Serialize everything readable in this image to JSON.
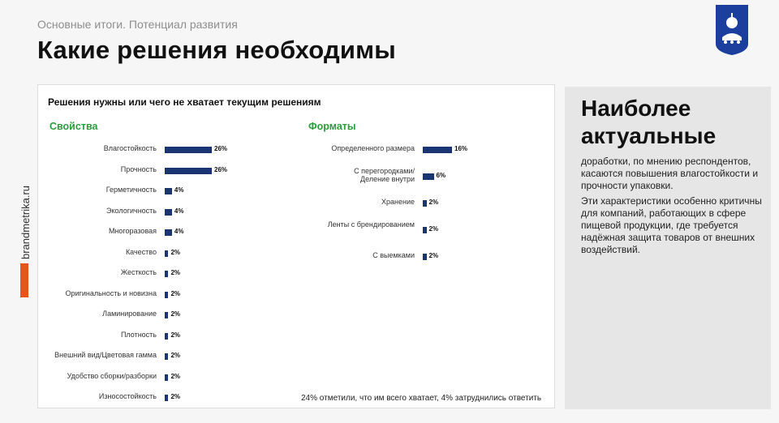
{
  "header": {
    "supertitle": "Основные итоги. Потенциал развития",
    "title": "Какие решения необходимы"
  },
  "brand": {
    "side_text": "brandmetrika.ru"
  },
  "chart_data": [
    {
      "type": "bar",
      "orientation": "horizontal",
      "title": "Свойства",
      "categories": [
        "Влагостойкость",
        "Прочность",
        "Герметичность",
        "Экологичность",
        "Многоразовая",
        "Качество",
        "Жесткость",
        "Оригинальность и новизна",
        "Ламинирование",
        "Плотность",
        "Внешний вид/Цветовая гамма",
        "Удобство сборки/разборки",
        "Износостойкость"
      ],
      "values": [
        26,
        26,
        4,
        4,
        4,
        2,
        2,
        2,
        2,
        2,
        2,
        2,
        2
      ],
      "value_labels": [
        "26%",
        "26%",
        "4%",
        "4%",
        "4%",
        "2%",
        "2%",
        "2%",
        "2%",
        "2%",
        "2%",
        "2%",
        "2%"
      ],
      "unit": "%",
      "xlim": [
        0,
        26
      ],
      "grid": false,
      "color": "#1b3472"
    },
    {
      "type": "bar",
      "orientation": "horizontal",
      "title": "Форматы",
      "categories": [
        "Определенного размера",
        "С перегородками/Деление внутри",
        "Хранение",
        "Ленты  с брендированием",
        "С выемками"
      ],
      "values": [
        16,
        6,
        2,
        2,
        2
      ],
      "value_labels": [
        "16%",
        "6%",
        "2%",
        "2%",
        "2%"
      ],
      "unit": "%",
      "xlim": [
        0,
        16
      ],
      "grid": false,
      "color": "#1b3472"
    }
  ],
  "panel": {
    "title": "Решения нужны или чего не хватает текущим решениям",
    "footnote": "24% отметили, что им всего хватает, 4% затруднились ответить"
  },
  "summary": {
    "heading_line1": "Наиболее",
    "heading_line2": "актуальные",
    "paragraph1": "доработки, по мнению респондентов, касаются повышения влагостойкости и прочности упаковки.",
    "paragraph2": "Эти характеристики особенно критичны для компаний, работающих в сфере пищевой продукции, где требуется надёжная защита товаров от внешних воздействий."
  },
  "colors": {
    "accent_green": "#2a9d3c",
    "bar_navy": "#1b3472",
    "brand_orange": "#e8541e",
    "logo_blue": "#1c3f9e"
  }
}
